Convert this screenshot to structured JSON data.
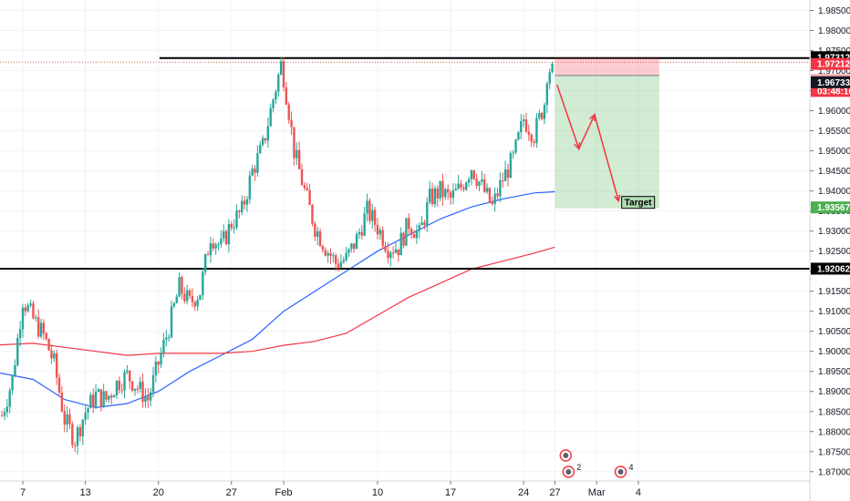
{
  "chart_data": {
    "type": "candlestick",
    "title": "",
    "xlabel": "",
    "ylabel": "",
    "ylim": [
      1.8665,
      1.9878
    ],
    "y_ticks": [
      1.87,
      1.875,
      1.88,
      1.885,
      1.89,
      1.895,
      1.9,
      1.905,
      1.91,
      1.915,
      1.92,
      1.925,
      1.93,
      1.935,
      1.94,
      1.945,
      1.95,
      1.955,
      1.96,
      1.965,
      1.97,
      1.975,
      1.98,
      1.985
    ],
    "y_tick_labels": [
      "1.87000",
      "1.87500",
      "1.88000",
      "1.88500",
      "1.89000",
      "1.89500",
      "1.90000",
      "1.90500",
      "1.91000",
      "1.91500",
      "1.92000",
      "1.92500",
      "1.93000",
      "1.93500",
      "1.94000",
      "1.94500",
      "1.95000",
      "1.95500",
      "1.96000",
      "1.96500",
      "1.97000",
      "1.97500",
      "1.98000",
      "1.98500"
    ],
    "x_ticks": [
      {
        "label": "7",
        "day": 7
      },
      {
        "label": "13",
        "day": 13
      },
      {
        "label": "20",
        "day": 20
      },
      {
        "label": "27",
        "day": 27
      },
      {
        "label": "Feb",
        "day": 32
      },
      {
        "label": "10",
        "day": 41
      },
      {
        "label": "17",
        "day": 48
      },
      {
        "label": "24",
        "day": 55
      },
      {
        "label": "27",
        "day": 58
      },
      {
        "label": "Mar",
        "day": 62
      },
      {
        "label": "4",
        "day": 66
      }
    ],
    "price_path": [
      [
        5,
        1.884
      ],
      [
        6,
        1.893
      ],
      [
        7,
        1.913
      ],
      [
        8,
        1.908
      ],
      [
        9,
        1.904
      ],
      [
        10,
        1.897
      ],
      [
        11,
        1.883
      ],
      [
        12,
        1.878
      ],
      [
        13,
        1.885
      ],
      [
        14,
        1.889
      ],
      [
        15,
        1.888
      ],
      [
        16,
        1.892
      ],
      [
        17,
        1.894
      ],
      [
        18,
        1.891
      ],
      [
        19,
        1.888
      ],
      [
        20,
        1.897
      ],
      [
        21,
        1.906
      ],
      [
        22,
        1.916
      ],
      [
        23,
        1.912
      ],
      [
        24,
        1.915
      ],
      [
        25,
        1.929
      ],
      [
        26,
        1.926
      ],
      [
        27,
        1.932
      ],
      [
        28,
        1.935
      ],
      [
        29,
        1.945
      ],
      [
        30,
        1.951
      ],
      [
        31,
        1.963
      ],
      [
        31.8,
        1.972
      ],
      [
        32.5,
        1.96
      ],
      [
        33,
        1.95
      ],
      [
        34,
        1.94
      ],
      [
        35,
        1.931
      ],
      [
        36,
        1.926
      ],
      [
        37,
        1.922
      ],
      [
        38,
        1.923
      ],
      [
        39,
        1.928
      ],
      [
        40,
        1.935
      ],
      [
        41,
        1.931
      ],
      [
        42,
        1.926
      ],
      [
        43,
        1.926
      ],
      [
        44,
        1.932
      ],
      [
        45,
        1.929
      ],
      [
        46,
        1.938
      ],
      [
        47,
        1.94
      ],
      [
        48,
        1.938
      ],
      [
        49,
        1.941
      ],
      [
        50,
        1.946
      ],
      [
        51,
        1.941
      ],
      [
        52,
        1.936
      ],
      [
        53,
        1.943
      ],
      [
        54,
        1.948
      ],
      [
        55,
        1.958
      ],
      [
        56,
        1.954
      ],
      [
        57,
        1.962
      ],
      [
        57.3,
        1.971
      ],
      [
        57.8,
        1.9695
      ]
    ],
    "moving_averages": [
      {
        "color": "#2962ff",
        "points": [
          [
            4,
            1.895
          ],
          [
            8,
            1.893
          ],
          [
            11,
            1.888
          ],
          [
            14,
            1.886
          ],
          [
            17,
            1.887
          ],
          [
            20,
            1.89
          ],
          [
            23,
            1.895
          ],
          [
            26,
            1.899
          ],
          [
            29,
            1.903
          ],
          [
            32,
            1.91
          ],
          [
            35,
            1.915
          ],
          [
            38,
            1.92
          ],
          [
            41,
            1.925
          ],
          [
            44,
            1.929
          ],
          [
            47,
            1.933
          ],
          [
            50,
            1.936
          ],
          [
            53,
            1.938
          ],
          [
            56,
            1.9395
          ],
          [
            58,
            1.9398
          ]
        ]
      },
      {
        "color": "#f23645",
        "points": [
          [
            4,
            1.9015
          ],
          [
            8,
            1.902
          ],
          [
            11,
            1.901
          ],
          [
            14,
            1.9
          ],
          [
            17,
            1.899
          ],
          [
            20,
            1.8995
          ],
          [
            23,
            1.8995
          ],
          [
            26,
            1.8995
          ],
          [
            29,
            1.9
          ],
          [
            32,
            1.9015
          ],
          [
            35,
            1.9025
          ],
          [
            38,
            1.9045
          ],
          [
            41,
            1.909
          ],
          [
            44,
            1.9135
          ],
          [
            47,
            1.917
          ],
          [
            50,
            1.9205
          ],
          [
            53,
            1.9225
          ],
          [
            56,
            1.9245
          ],
          [
            58,
            1.926
          ]
        ]
      }
    ],
    "horizontal_lines": [
      {
        "value": 1.97312,
        "label": "1.97312",
        "from_day": 20.1
      },
      {
        "value": 1.92062,
        "label": "1.92062",
        "from_day": 3.8
      }
    ],
    "current_price": {
      "value": 1.97212,
      "label": "1.97212",
      "countdown": "03:48:16"
    },
    "short_position": {
      "from_day": 58,
      "to_day": 68,
      "entry": 1.96879,
      "stop": 1.97312,
      "target": 1.93567,
      "entry_label": "1.96879",
      "target_label": "1.93567",
      "extra_label": "1.96733",
      "target_text": "Target"
    },
    "projection_path": [
      [
        58.2,
        1.9665
      ],
      [
        60.3,
        1.9505
      ],
      [
        61.8,
        1.959
      ],
      [
        64.1,
        1.9375
      ]
    ],
    "event_markers": [
      {
        "day": 59.3,
        "count": "2"
      },
      {
        "day": 64.3,
        "count": "4"
      }
    ]
  }
}
